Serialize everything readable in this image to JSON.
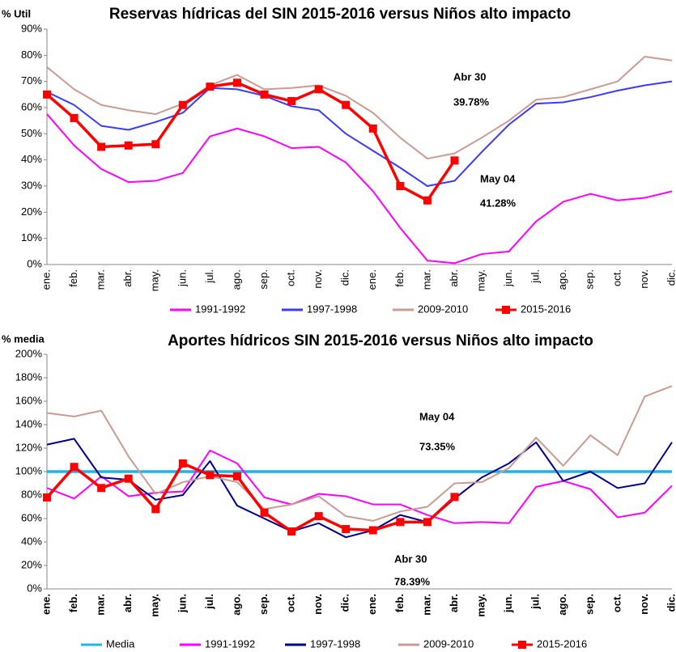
{
  "chart_data": [
    {
      "type": "line",
      "title": "Reservas hídricas del SIN 2015-2016 versus Niños alto impacto",
      "ylabel": "% Util",
      "categories": [
        "ene.",
        "feb.",
        "mar.",
        "abr.",
        "may.",
        "jun.",
        "jul.",
        "ago.",
        "sep.",
        "oct.",
        "nov.",
        "dic.",
        "ene.",
        "feb.",
        "mar.",
        "abr.",
        "may.",
        "jun.",
        "jul.",
        "ago.",
        "sep.",
        "oct.",
        "nov.",
        "dic."
      ],
      "ylim": [
        0,
        90
      ],
      "yticks": [
        {
          "value": 0,
          "label": "0%"
        },
        {
          "value": 10,
          "label": "10%"
        },
        {
          "value": 20,
          "label": "20%"
        },
        {
          "value": 30,
          "label": "30%"
        },
        {
          "value": 40,
          "label": "40%"
        },
        {
          "value": 50,
          "label": "50%"
        },
        {
          "value": 60,
          "label": "60%"
        },
        {
          "value": 70,
          "label": "70%"
        },
        {
          "value": 80,
          "label": "80%"
        },
        {
          "value": 90,
          "label": "90%"
        }
      ],
      "grid": false,
      "series": [
        {
          "name": "1991-1992",
          "color": "#ff00ff",
          "values": [
            57.5,
            45.5,
            36.5,
            31.5,
            32,
            35,
            49,
            52,
            49,
            44.5,
            45,
            39,
            28,
            14,
            1.5,
            0.5,
            4,
            5,
            16.5,
            24,
            27,
            24.5,
            25.5,
            28
          ]
        },
        {
          "name": "1997-1998",
          "color": "#3a3aff",
          "values": [
            66,
            61,
            53,
            51.5,
            54.5,
            58,
            67.5,
            67,
            64.5,
            60.5,
            59,
            50,
            43.5,
            37,
            30,
            32,
            43,
            53.5,
            61.5,
            62,
            64,
            66.5,
            68.5,
            70
          ]
        },
        {
          "name": "2009-2010",
          "color": "#c99b94",
          "values": [
            75.5,
            67,
            61,
            59,
            57.5,
            61.5,
            68.5,
            72.5,
            67,
            67.5,
            68.5,
            64.5,
            58,
            48.5,
            40.5,
            42.5,
            48.5,
            55,
            63,
            64,
            67,
            70,
            79.5,
            78
          ]
        },
        {
          "name": "2015-2016",
          "color": "#ff0000",
          "marker": "square",
          "values": [
            65,
            56,
            45,
            45.5,
            46,
            61,
            68,
            69.5,
            65,
            62.5,
            67,
            61,
            52,
            30,
            24.5,
            39.78,
            null,
            null,
            null,
            null,
            null,
            null,
            null,
            null
          ]
        }
      ],
      "annotations": [
        "Abr 30",
        "39.78%",
        "May 04",
        "41.28%"
      ]
    },
    {
      "type": "line",
      "title": "Aportes hídricos SIN 2015-2016 versus Niños alto impacto",
      "ylabel": "% media",
      "categories": [
        "ene.",
        "feb.",
        "mar.",
        "abr.",
        "may.",
        "jun.",
        "jul.",
        "ago.",
        "sep.",
        "oct.",
        "nov.",
        "dic.",
        "ene.",
        "feb.",
        "mar.",
        "abr.",
        "may.",
        "jun.",
        "jul.",
        "ago.",
        "sep.",
        "oct.",
        "nov.",
        "dic."
      ],
      "ylim": [
        0,
        200
      ],
      "yticks": [
        {
          "value": 0,
          "label": "0%"
        },
        {
          "value": 20,
          "label": "20%"
        },
        {
          "value": 40,
          "label": "40%"
        },
        {
          "value": 60,
          "label": "60%"
        },
        {
          "value": 80,
          "label": "80%"
        },
        {
          "value": 100,
          "label": "100%"
        },
        {
          "value": 120,
          "label": "120%"
        },
        {
          "value": 140,
          "label": "140%"
        },
        {
          "value": 160,
          "label": "160%"
        },
        {
          "value": 180,
          "label": "180%"
        },
        {
          "value": 200,
          "label": "200%"
        }
      ],
      "grid": false,
      "series": [
        {
          "name": "Media",
          "color": "#1fb4e8",
          "values": [
            100,
            100,
            100,
            100,
            100,
            100,
            100,
            100,
            100,
            100,
            100,
            100,
            100,
            100,
            100,
            100,
            100,
            100,
            100,
            100,
            100,
            100,
            100,
            100
          ]
        },
        {
          "name": "1991-1992",
          "color": "#ff00ff",
          "values": [
            86,
            77,
            96,
            79,
            82,
            83,
            118,
            107,
            78,
            72,
            81,
            79,
            72,
            72,
            63,
            56,
            57,
            56,
            87,
            92,
            85,
            61,
            65,
            88
          ]
        },
        {
          "name": "1997-1998",
          "color": "#00008b",
          "values": [
            123,
            128,
            95,
            93,
            76,
            80,
            109,
            71,
            60,
            49,
            56,
            44,
            50,
            63,
            57,
            77,
            95,
            107,
            125,
            92,
            100,
            86,
            90,
            125
          ]
        },
        {
          "name": "2009-2010",
          "color": "#c99b94",
          "values": [
            150,
            147,
            152,
            113,
            81,
            91,
            96,
            91,
            68,
            72,
            79,
            62,
            58,
            66,
            70,
            90,
            91,
            103,
            129,
            105,
            131,
            114,
            164,
            173
          ]
        },
        {
          "name": "2015-2016",
          "color": "#ff0000",
          "marker": "square",
          "values": [
            78,
            104,
            86,
            94,
            68,
            107,
            97,
            96,
            65,
            49,
            62,
            51,
            50,
            57,
            57,
            78.39,
            null,
            null,
            null,
            null,
            null,
            null,
            null,
            null
          ]
        }
      ],
      "annotations": [
        "May 04",
        "73.35%",
        "Abr 30",
        "78.39%"
      ]
    }
  ]
}
